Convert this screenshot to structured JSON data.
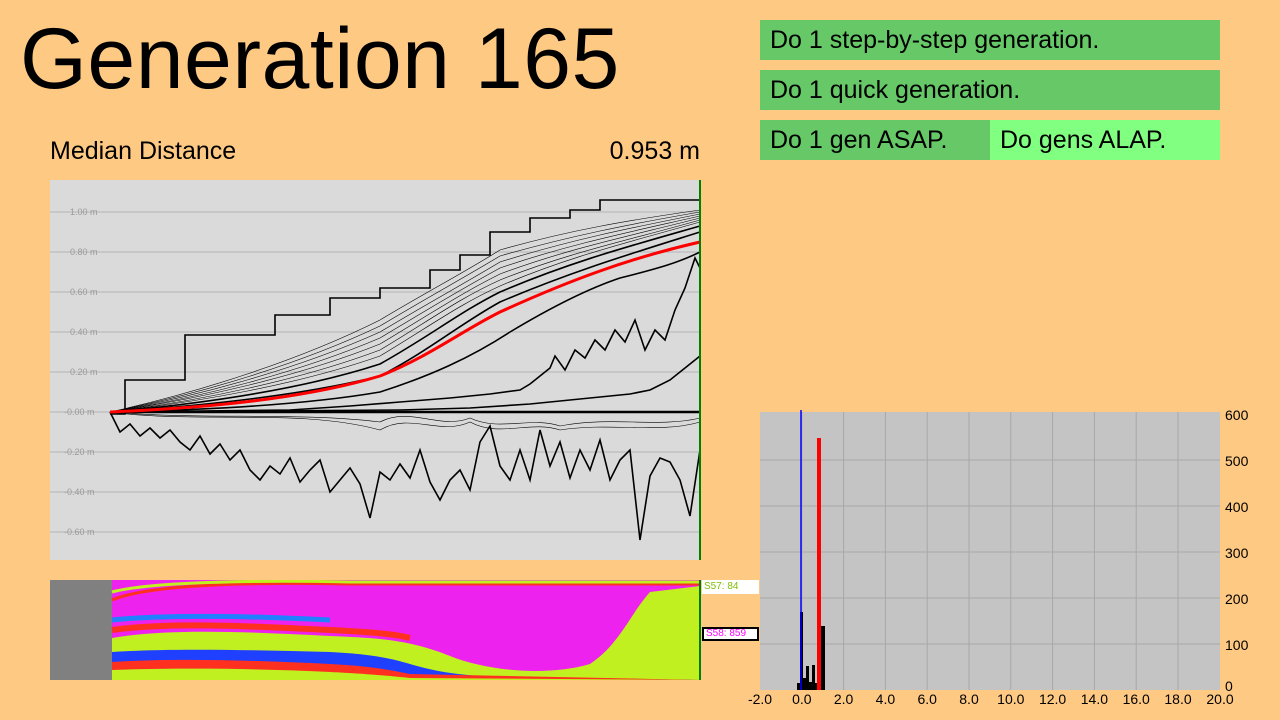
{
  "header": {
    "title": "Generation 165"
  },
  "metric": {
    "label": "Median Distance",
    "value": "0.953 m"
  },
  "buttons": {
    "step_by_step": "Do 1 step-by-step generation.",
    "quick": "Do 1 quick generation.",
    "asap": "Do 1 gen ASAP.",
    "alap": "Do gens ALAP."
  },
  "line_graph": {
    "y_tick_labels": [
      "1.00 m",
      "0.80 m",
      "0.60 m",
      "0.40 m",
      "0.20 m",
      "-0.00 m",
      "-0.20 m",
      "-0.40 m",
      "-0.60 m"
    ]
  },
  "species": {
    "top_label": "S57: 84",
    "bottom_label": "S58: 859",
    "top_color": "#80c000",
    "bottom_color": "#ff00ff"
  },
  "histogram": {
    "x_tick_labels": [
      "-2.0",
      "0.0",
      "2.0",
      "4.0",
      "6.0",
      "8.0",
      "10.0",
      "12.0",
      "14.0",
      "16.0",
      "18.0",
      "20.0"
    ],
    "y_tick_labels": [
      "0",
      "100",
      "200",
      "300",
      "400",
      "500",
      "600"
    ]
  },
  "colors": {
    "background": "#fec983",
    "button": "#66c866",
    "button_active": "#80ff80",
    "median": "#ff0000",
    "zero_line": "#0000ff"
  }
}
